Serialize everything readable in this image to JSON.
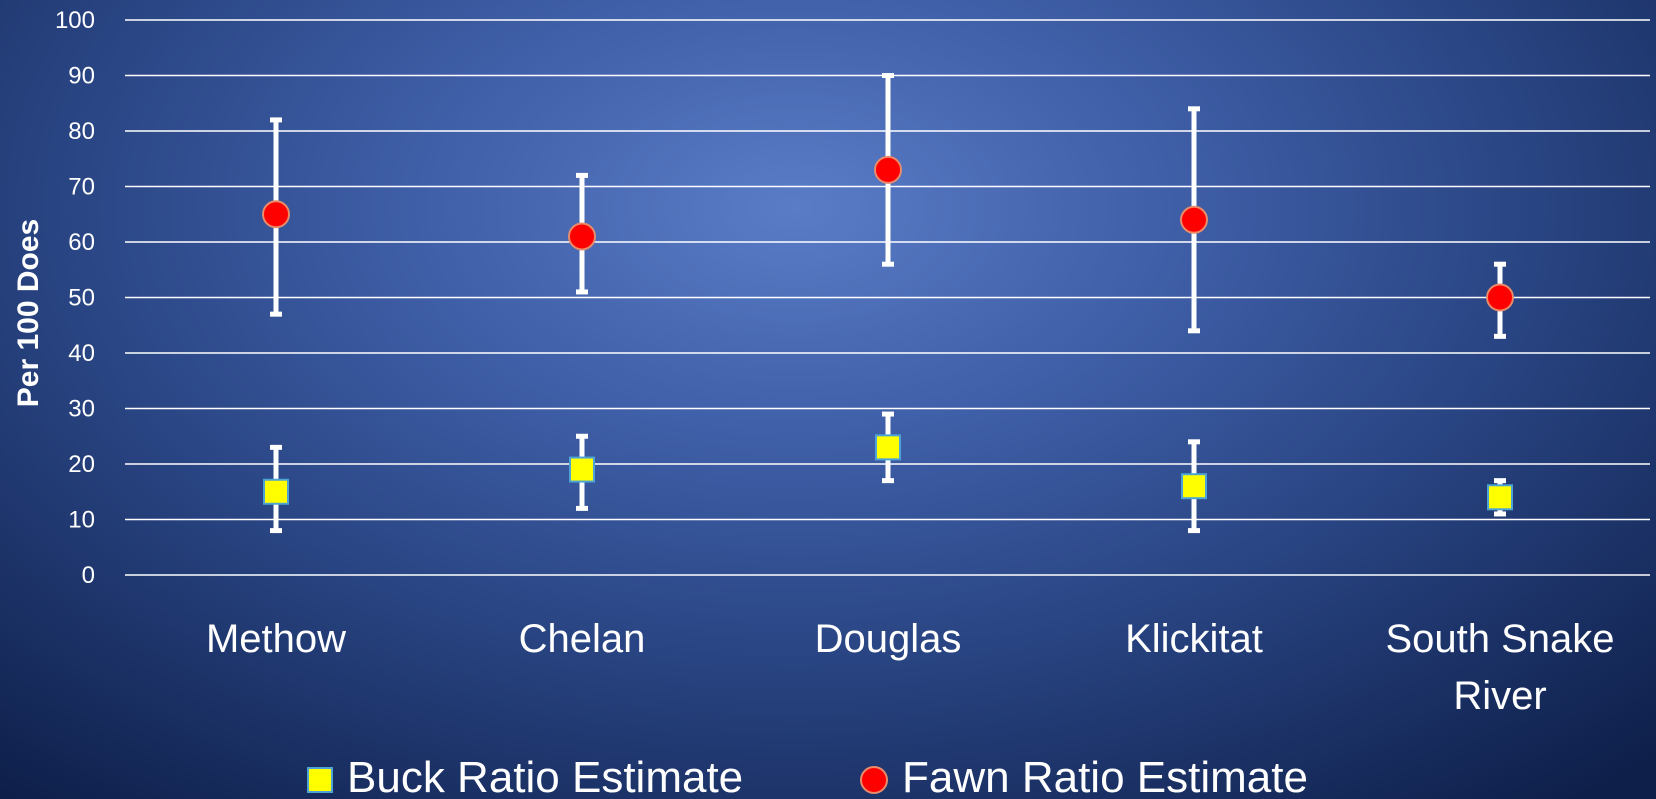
{
  "chart_data": {
    "type": "scatter",
    "categories": [
      "Methow",
      "Chelan",
      "Douglas",
      "Klickitat",
      "South Snake River"
    ],
    "ylabel": "Per 100 Does",
    "xlabel": "",
    "ylim": [
      0,
      100
    ],
    "yticks": [
      0,
      10,
      20,
      30,
      40,
      50,
      60,
      70,
      80,
      90,
      100
    ],
    "grid": true,
    "legend_position": "bottom",
    "series": [
      {
        "name": "Buck Ratio Estimate",
        "marker": "square",
        "color": "#ffff00",
        "edge_color": "#4da3d6",
        "values": [
          15,
          19,
          23,
          16,
          14
        ],
        "lower": [
          8,
          12,
          17,
          8,
          11
        ],
        "upper": [
          23,
          25,
          29,
          24,
          17
        ]
      },
      {
        "name": "Fawn Ratio Estimate",
        "marker": "circle",
        "color": "#ff0000",
        "edge_color": "#e88b6b",
        "values": [
          65,
          61,
          73,
          64,
          50
        ],
        "lower": [
          47,
          51,
          56,
          44,
          43
        ],
        "upper": [
          82,
          72,
          90,
          84,
          56
        ]
      }
    ]
  },
  "legend": {
    "buck_label": "Buck Ratio Estimate",
    "fawn_label": "Fawn Ratio Estimate"
  },
  "colors": {
    "gridline": "#ffffff",
    "error_bar": "#ffffff"
  }
}
